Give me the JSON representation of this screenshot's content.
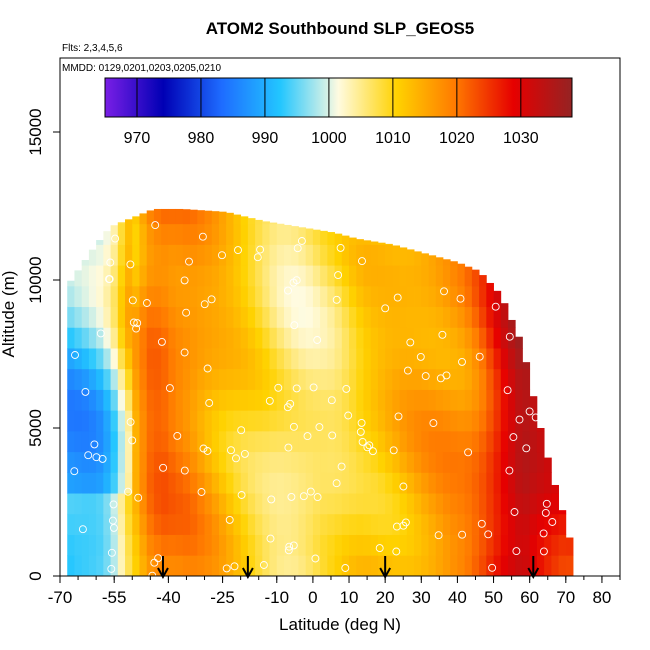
{
  "chart_data": {
    "type": "heatmap",
    "title": "ATOM2 Southbound SLP_GEOS5",
    "subtitle_flights": "Flts: 2,3,4,5,6",
    "subtitle_dates": "MMDD: 0129,0201,0203,0205,0210",
    "xlabel": "Latitude (deg N)",
    "ylabel": "Altitude (m)",
    "xlim": [
      -70,
      85
    ],
    "ylim": [
      0,
      17500
    ],
    "x_ticks": [
      -70,
      -55,
      -40,
      -25,
      -10,
      0,
      10,
      20,
      30,
      40,
      50,
      60,
      70,
      80
    ],
    "y_ticks": [
      0,
      5000,
      10000,
      15000
    ],
    "colorbar": {
      "label_ticks": [
        970,
        980,
        990,
        1000,
        1010,
        1020,
        1030
      ],
      "range": [
        965,
        1038
      ],
      "colors": [
        "#7a1fe6",
        "#0000b4",
        "#1e6cff",
        "#22c6ff",
        "#fffbe0",
        "#ffd200",
        "#ff7a00",
        "#e60000",
        "#952323"
      ]
    },
    "slp_profile_by_latitude": {
      "lat": [
        -67,
        -62,
        -58,
        -55,
        -52,
        -48,
        -45,
        -42,
        -38,
        -34,
        -30,
        -26,
        -22,
        -18,
        -14,
        -10,
        -6,
        -2,
        2,
        6,
        10,
        14,
        18,
        22,
        26,
        30,
        34,
        38,
        42,
        46,
        50,
        54,
        58,
        62,
        66,
        70
      ],
      "slp_hPa": [
        992,
        993,
        995,
        1000,
        1008,
        1016,
        1020,
        1021,
        1019,
        1018,
        1016,
        1014,
        1012,
        1010,
        1008,
        1006,
        1005,
        1005,
        1006,
        1007,
        1009,
        1011,
        1012,
        1013,
        1014,
        1015,
        1016,
        1017,
        1018,
        1021,
        1026,
        1031,
        1035,
        1032,
        1029,
        1026
      ]
    },
    "profile_top_altitude_m": {
      "lat": [
        -68,
        -60,
        -56,
        -52,
        -44,
        -36,
        -24,
        -14,
        -4,
        6,
        12,
        22,
        34,
        40,
        46,
        52,
        58,
        62,
        66,
        70,
        72
      ],
      "alt_m": [
        9800,
        11200,
        11800,
        12000,
        12400,
        12400,
        12300,
        12000,
        11800,
        11600,
        11400,
        11200,
        10800,
        10600,
        10300,
        9500,
        7800,
        5500,
        3500,
        1800,
        800
      ]
    },
    "descent_markers_lat": [
      -41.5,
      -18,
      20,
      61
    ]
  }
}
